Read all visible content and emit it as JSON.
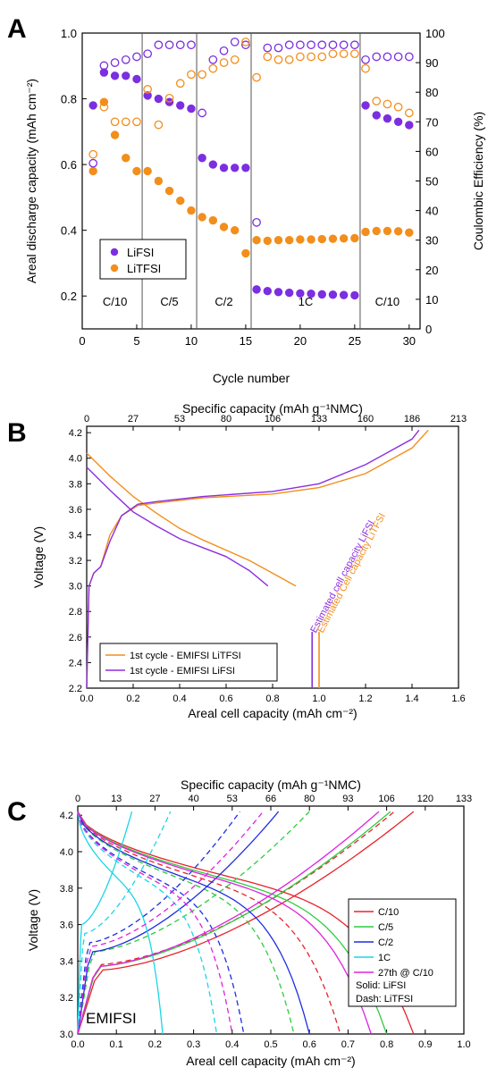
{
  "chart_data": [
    {
      "panel": "A",
      "type": "scatter",
      "xlabel": "Cycle number",
      "ylabel": "Areal discharge capacity (mAh cm⁻²)",
      "y2label": "Coulombic Efficiency (%)",
      "xlim": [
        0,
        31
      ],
      "xticks": [
        0,
        5,
        10,
        15,
        20,
        25,
        30
      ],
      "ylim": [
        0.1,
        1.0
      ],
      "yticks": [
        0.2,
        0.4,
        0.6,
        0.8,
        1.0
      ],
      "y2lim": [
        0,
        100
      ],
      "y2ticks": [
        0,
        10,
        20,
        30,
        40,
        50,
        60,
        70,
        80,
        90,
        100
      ],
      "rate_dividers": [
        5.5,
        10.5,
        15.5,
        25.5
      ],
      "rate_labels": [
        {
          "label": "C/10",
          "x": 3
        },
        {
          "label": "C/5",
          "x": 8
        },
        {
          "label": "C/2",
          "x": 13
        },
        {
          "label": "1C",
          "x": 20.5
        },
        {
          "label": "C/10",
          "x": 28
        }
      ],
      "legend": {
        "position": "lower-left",
        "entries": [
          "LiFSI",
          "LiTFSI"
        ]
      },
      "colors": {
        "LiFSI": "#7b2fe0",
        "LiTFSI": "#f28e1c"
      },
      "series": [
        {
          "name": "LiFSI",
          "axis": "capacity",
          "marker": "filled",
          "x": [
            1,
            2,
            3,
            4,
            5,
            6,
            7,
            8,
            9,
            10,
            11,
            12,
            13,
            14,
            15,
            16,
            17,
            18,
            19,
            20,
            21,
            22,
            23,
            24,
            25,
            26,
            27,
            28,
            29,
            30
          ],
          "y": [
            0.78,
            0.88,
            0.87,
            0.87,
            0.86,
            0.81,
            0.8,
            0.79,
            0.78,
            0.77,
            0.62,
            0.6,
            0.59,
            0.59,
            0.59,
            0.22,
            0.215,
            0.212,
            0.21,
            0.208,
            0.207,
            0.205,
            0.204,
            0.203,
            0.202,
            0.78,
            0.75,
            0.74,
            0.73,
            0.72
          ]
        },
        {
          "name": "LiTFSI",
          "axis": "capacity",
          "marker": "filled",
          "x": [
            1,
            2,
            3,
            4,
            5,
            6,
            7,
            8,
            9,
            10,
            11,
            12,
            13,
            14,
            15,
            16,
            17,
            18,
            19,
            20,
            21,
            22,
            23,
            24,
            25,
            26,
            27,
            28,
            29,
            30
          ],
          "y": [
            0.58,
            0.79,
            0.69,
            0.62,
            0.58,
            0.58,
            0.55,
            0.52,
            0.49,
            0.46,
            0.44,
            0.43,
            0.41,
            0.4,
            0.33,
            0.37,
            0.368,
            0.37,
            0.37,
            0.372,
            0.372,
            0.373,
            0.374,
            0.375,
            0.376,
            0.395,
            0.398,
            0.398,
            0.397,
            0.393
          ]
        },
        {
          "name": "LiFSI",
          "axis": "ce",
          "marker": "open",
          "x": [
            1,
            2,
            3,
            4,
            5,
            6,
            7,
            8,
            9,
            10,
            11,
            12,
            13,
            14,
            15,
            16,
            17,
            18,
            19,
            20,
            21,
            22,
            23,
            24,
            25,
            26,
            27,
            28,
            29,
            30
          ],
          "y": [
            56,
            89,
            90,
            91,
            92,
            93,
            96,
            96,
            96,
            96,
            73,
            91,
            94,
            97,
            96,
            36,
            95,
            95,
            96,
            96,
            96,
            96,
            96,
            96,
            96,
            91,
            92,
            92,
            92,
            92
          ]
        },
        {
          "name": "LiTFSI",
          "axis": "ce",
          "marker": "open",
          "x": [
            1,
            2,
            3,
            4,
            5,
            6,
            7,
            8,
            9,
            10,
            11,
            12,
            13,
            14,
            15,
            16,
            17,
            18,
            19,
            20,
            21,
            22,
            23,
            24,
            25,
            26,
            27,
            28,
            29,
            30
          ],
          "y": [
            59,
            75,
            70,
            70,
            70,
            81,
            69,
            78,
            83,
            86,
            86,
            88,
            90,
            91,
            97,
            85,
            92,
            91,
            91,
            92,
            92,
            92,
            93,
            93,
            93,
            88,
            77,
            76,
            75,
            73
          ]
        }
      ]
    },
    {
      "panel": "B",
      "type": "line",
      "title": "Specific capacity (mAh g⁻¹NMC)",
      "xlabel": "Areal cell capacity (mAh cm⁻²)",
      "ylabel": "Voltage (V)",
      "xlim": [
        0,
        1.6
      ],
      "xticks": [
        0,
        0.2,
        0.4,
        0.6,
        0.8,
        1.0,
        1.2,
        1.4,
        1.6
      ],
      "ylim": [
        2.2,
        4.25
      ],
      "yticks": [
        2.2,
        2.4,
        2.6,
        2.8,
        3.0,
        3.2,
        3.4,
        3.6,
        3.8,
        4.0,
        4.2
      ],
      "top_ticks": [
        "0",
        "27",
        "53",
        "80",
        "106",
        "133",
        "160",
        "186",
        "213"
      ],
      "legend": {
        "position": "lower-left",
        "entries": [
          "1st cycle - EMIFSI LiTFSI",
          "1st cycle - EMIFSI LiFSI"
        ]
      },
      "colors": {
        "LiTFSI": "#f28e1c",
        "LiFSI": "#8b2fe0"
      },
      "series": [
        {
          "name": "1st cycle - EMIFSI LiTFSI",
          "x": [
            0,
            0.01,
            0.03,
            0.06,
            0.1,
            0.15,
            0.22,
            0.3,
            0.5,
            0.8,
            1.0,
            1.2,
            1.4,
            1.47
          ],
          "y": [
            2.2,
            3.0,
            3.1,
            3.15,
            3.4,
            3.55,
            3.63,
            3.65,
            3.69,
            3.72,
            3.77,
            3.88,
            4.08,
            4.22
          ]
        },
        {
          "name": "1st cycle - EMIFSI LiTFSI",
          "x": [
            0,
            0.1,
            0.2,
            0.3,
            0.4,
            0.5,
            0.6,
            0.7,
            0.8,
            0.9
          ],
          "y": [
            4.04,
            3.86,
            3.7,
            3.57,
            3.45,
            3.36,
            3.28,
            3.2,
            3.1,
            3.0
          ]
        },
        {
          "name": "1st cycle - EMIFSI LiFSI",
          "x": [
            0,
            0.01,
            0.03,
            0.06,
            0.1,
            0.15,
            0.22,
            0.3,
            0.5,
            0.8,
            1.0,
            1.2,
            1.4,
            1.43
          ],
          "y": [
            2.2,
            3.0,
            3.1,
            3.15,
            3.35,
            3.55,
            3.64,
            3.66,
            3.7,
            3.74,
            3.8,
            3.95,
            4.15,
            4.22
          ]
        },
        {
          "name": "1st cycle - EMIFSI LiFSI",
          "x": [
            0,
            0.1,
            0.2,
            0.3,
            0.4,
            0.5,
            0.6,
            0.7,
            0.78
          ],
          "y": [
            3.93,
            3.75,
            3.58,
            3.47,
            3.37,
            3.3,
            3.23,
            3.12,
            3.0
          ]
        }
      ],
      "annotations": [
        {
          "text": "Estimated cell capacity LiFSI",
          "x": 0.97,
          "color": "#8b2fe0"
        },
        {
          "text": "Estimated Cell capacity LiTFSI",
          "x": 1.0,
          "color": "#f28e1c"
        }
      ]
    },
    {
      "panel": "C",
      "type": "line",
      "title": "Specific capacity (mAh g⁻¹NMC)",
      "xlabel": "Areal cell capacity (mAh cm⁻²)",
      "ylabel": "Voltage (V)",
      "xlim": [
        0,
        1.0
      ],
      "xticks": [
        0,
        0.1,
        0.2,
        0.3,
        0.4,
        0.5,
        0.6,
        0.7,
        0.8,
        0.9,
        1.0
      ],
      "ylim": [
        3.0,
        4.25
      ],
      "yticks": [
        3.0,
        3.2,
        3.4,
        3.6,
        3.8,
        4.0,
        4.2
      ],
      "top_ticks": [
        "0",
        "13",
        "27",
        "40",
        "53",
        "66",
        "80",
        "93",
        "106",
        "120",
        "133"
      ],
      "inset_label": "EMIFSI",
      "legend": {
        "position": "right",
        "entries": [
          "C/10",
          "C/5",
          "C/2",
          "1C",
          "27th @ C/10"
        ],
        "notes": [
          "Solid: LiFSI",
          "Dash: LiTFSI"
        ]
      },
      "series": [
        {
          "name": "C/10",
          "color": "#e8232a",
          "style": "solid",
          "charge": [
            0.87,
            3.35
          ],
          "discharge": 0.87
        },
        {
          "name": "C/10",
          "color": "#e8232a",
          "style": "dash",
          "charge": [
            0.82,
            3.38
          ],
          "discharge": 0.68
        },
        {
          "name": "C/5",
          "color": "#2ecc40",
          "style": "solid",
          "charge": [
            0.81,
            3.37
          ],
          "discharge": 0.8
        },
        {
          "name": "C/5",
          "color": "#2ecc40",
          "style": "dash",
          "charge": [
            0.6,
            3.45
          ],
          "discharge": 0.56
        },
        {
          "name": "C/2",
          "color": "#1f2ee0",
          "style": "solid",
          "charge": [
            0.52,
            3.45
          ],
          "discharge": 0.6
        },
        {
          "name": "C/2",
          "color": "#1f2ee0",
          "style": "dash",
          "charge": [
            0.42,
            3.5
          ],
          "discharge": 0.43
        },
        {
          "name": "1C",
          "color": "#19d6e6",
          "style": "solid",
          "charge": [
            0.14,
            3.6
          ],
          "discharge": 0.22
        },
        {
          "name": "1C",
          "color": "#19d6e6",
          "style": "dash",
          "charge": [
            0.24,
            3.55
          ],
          "discharge": 0.36
        },
        {
          "name": "27th @ C/10",
          "color": "#e020e0",
          "style": "solid",
          "charge": [
            0.78,
            3.37
          ],
          "discharge": 0.76
        },
        {
          "name": "27th @ C/10",
          "color": "#e020e0",
          "style": "dash",
          "charge": [
            0.48,
            3.48
          ],
          "discharge": 0.4
        }
      ]
    }
  ]
}
